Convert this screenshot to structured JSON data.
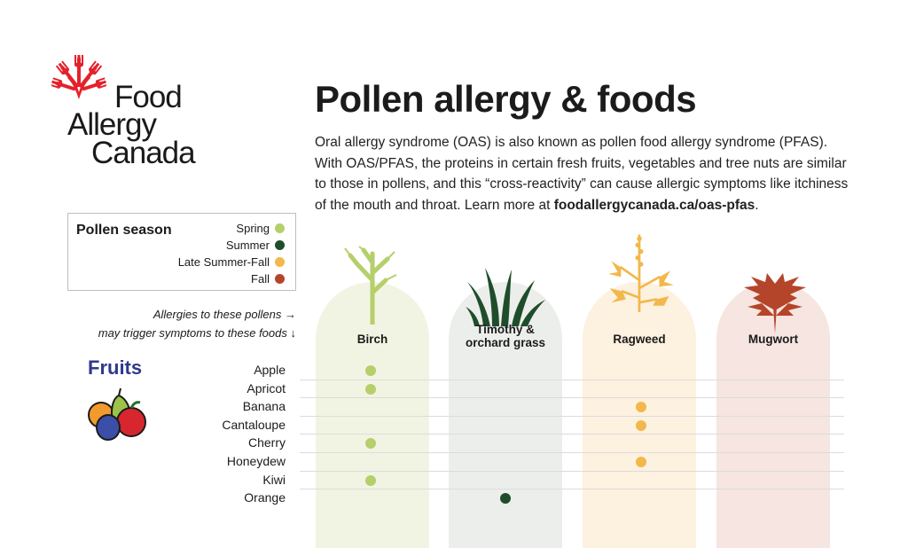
{
  "logo": {
    "line1": "Food",
    "line2": "Allergy",
    "line3": "Canada",
    "color": "#e3222b"
  },
  "title": "Pollen allergy & foods",
  "intro": {
    "text": "Oral allergy syndrome (OAS) is also known as pollen food allergy syndrome (PFAS). With OAS/PFAS, the proteins in certain fresh fruits, vegetables and tree nuts are similar to those in pollens, and this “cross-reactivity” can cause allergic symptoms like itchiness of the mouth and throat. Learn more at ",
    "link": "foodallergycanada.ca/oas-pfas",
    "end": "."
  },
  "legend": {
    "title": "Pollen season",
    "seasons": [
      {
        "label": "Spring",
        "color": "#b5cf6b"
      },
      {
        "label": "Summer",
        "color": "#1f4d2b"
      },
      {
        "label": "Late Summer-Fall",
        "color": "#f2b84b"
      },
      {
        "label": "Fall",
        "color": "#b5452a"
      }
    ]
  },
  "instructions": {
    "line1": "Allergies to these pollens →",
    "line2": "may trigger symptoms to these foods ↓"
  },
  "category": {
    "label": "Fruits",
    "icon": "fruits-icon"
  },
  "pollens": [
    {
      "name": "Birch",
      "bg": "#f2f4e3",
      "icon": "birch-icon"
    },
    {
      "name": "Timothy &\norchard grass",
      "bg": "#eceeec",
      "icon": "grass-icon"
    },
    {
      "name": "Ragweed",
      "bg": "#fdf1e0",
      "icon": "ragweed-icon"
    },
    {
      "name": "Mugwort",
      "bg": "#f6e5e0",
      "icon": "mugwort-icon"
    }
  ],
  "foods": [
    {
      "name": "Apple",
      "marks": [
        0
      ]
    },
    {
      "name": "Apricot",
      "marks": [
        0
      ]
    },
    {
      "name": "Banana",
      "marks": [
        2
      ]
    },
    {
      "name": "Cantaloupe",
      "marks": [
        2
      ]
    },
    {
      "name": "Cherry",
      "marks": [
        0
      ]
    },
    {
      "name": "Honeydew",
      "marks": [
        2
      ]
    },
    {
      "name": "Kiwi",
      "marks": [
        0
      ]
    },
    {
      "name": "Orange",
      "marks": [
        1
      ]
    }
  ],
  "mark_colors": [
    "#b5cf6b",
    "#1f4d2b",
    "#f2b84b",
    "#b5452a"
  ]
}
